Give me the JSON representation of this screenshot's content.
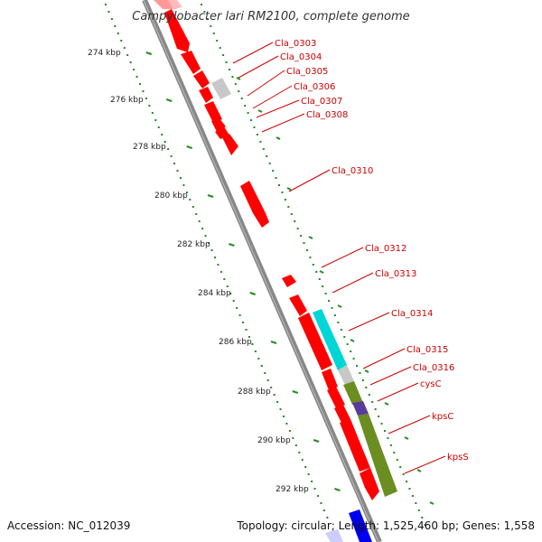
{
  "title": "Campylobacter lari RM2100, complete genome",
  "footer": {
    "accession": "Accession: NC_012039",
    "topology": "Topology: circular; Length: 1,525,460 bp; Genes: 1,558"
  },
  "scale_labels": [
    "274 kbp",
    "276 kbp",
    "278 kbp",
    "280 kbp",
    "282 kbp",
    "284 kbp",
    "286 kbp",
    "288 kbp",
    "290 kbp",
    "292 kbp"
  ],
  "gene_labels": [
    "Cla_0303",
    "Cla_0304",
    "Cla_0305",
    "Cla_0306",
    "Cla_0307",
    "Cla_0308",
    "Cla_0310",
    "Cla_0312",
    "Cla_0313",
    "Cla_0314",
    "Cla_0315",
    "Cla_0316",
    "cysC",
    "kpsC",
    "kpsS"
  ],
  "colors": {
    "gene_red": "#ff0000",
    "gene_gray": "#c8c8c8",
    "gene_cyan": "#00d6d6",
    "gene_olive": "#6b8e23",
    "gene_purple": "#5a3a9a",
    "gene_blue": "#0000ee",
    "backbone": "#888888",
    "tick_green": "#228b22"
  }
}
